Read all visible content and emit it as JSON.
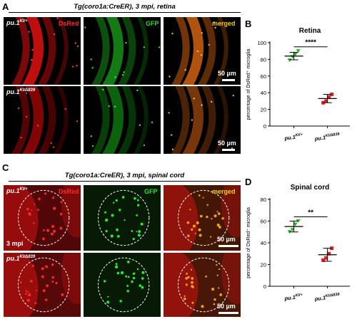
{
  "panels": {
    "A": {
      "letter": "A",
      "title": "Tg(coro1a:CreER), 3 mpi, retina",
      "channels": [
        "DsRed",
        "GFP",
        "merged"
      ],
      "rows": [
        {
          "genotype_base": "pu.1",
          "genotype_sup": "KI/+",
          "scale": "50 µm"
        },
        {
          "genotype_base": "pu.1",
          "genotype_sup": "KI/Δ839",
          "scale": "50 µm"
        }
      ]
    },
    "C": {
      "letter": "C",
      "title": "Tg(coro1a:CreER), 3 mpi, spinal cord",
      "channels": [
        "DsRed",
        "GFP",
        "merged"
      ],
      "age_label": "3 mpi",
      "rows": [
        {
          "genotype_base": "pu.1",
          "genotype_sup": "KI/+",
          "scale": "50 µm"
        },
        {
          "genotype_base": "pu.1",
          "genotype_sup": "KI/Δ839",
          "scale": "50 µm"
        }
      ]
    },
    "B": {
      "letter": "B"
    },
    "D": {
      "letter": "D"
    }
  },
  "chart_data": [
    {
      "type": "scatter",
      "panel": "B",
      "title": "Retina",
      "ylabel": "percentage of DsRed⁺ microglia",
      "ylim": [
        0,
        100
      ],
      "yticks": [
        0,
        20,
        40,
        60,
        80,
        100
      ],
      "categories": [
        {
          "base": "pu.1",
          "sup": "KI/+"
        },
        {
          "base": "pu.1",
          "sup": "KI/Δ839"
        }
      ],
      "series": [
        {
          "color": "#22b322",
          "marker": "triangle-down",
          "values": [
            79,
            83,
            86,
            90
          ],
          "mean": 84,
          "sd": 4.5
        },
        {
          "color": "#e02020",
          "marker": "square",
          "values": [
            28,
            30,
            35,
            38
          ],
          "mean": 33,
          "sd": 5
        }
      ],
      "significance": "****"
    },
    {
      "type": "scatter",
      "panel": "D",
      "title": "Spinal cord",
      "ylabel": "percentage of DsRed⁺ microglia",
      "ylim": [
        0,
        80
      ],
      "yticks": [
        0,
        20,
        40,
        60,
        80
      ],
      "categories": [
        {
          "base": "pu.1",
          "sup": "KI/+"
        },
        {
          "base": "pu.1",
          "sup": "KI/Δ839"
        }
      ],
      "series": [
        {
          "color": "#22b322",
          "marker": "triangle-down",
          "values": [
            50,
            52,
            57,
            60
          ],
          "mean": 55,
          "sd": 5
        },
        {
          "color": "#e02020",
          "marker": "square",
          "values": [
            24,
            26,
            30,
            35
          ],
          "mean": 29,
          "sd": 6
        }
      ],
      "significance": "**"
    }
  ]
}
